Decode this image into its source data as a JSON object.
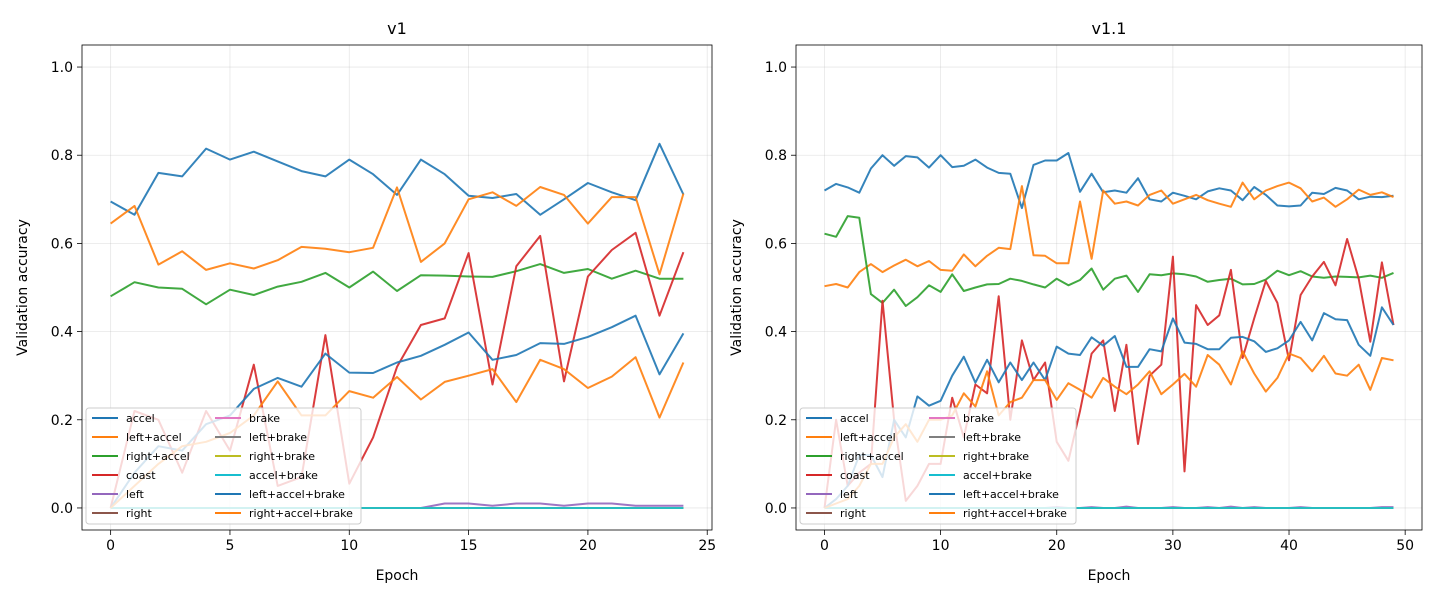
{
  "chart_data": [
    {
      "type": "line",
      "title": "v1",
      "xlabel": "Epoch",
      "ylabel": "Validation accuracy",
      "xlim": [
        -1.2,
        25.2
      ],
      "ylim": [
        -0.05,
        1.05
      ],
      "xticks": [
        0,
        5,
        10,
        15,
        20,
        25
      ],
      "yticks": [
        0.0,
        0.2,
        0.4,
        0.6,
        0.8,
        1.0
      ],
      "grid": true,
      "legend_placement": "lower-left",
      "legend_columns": 2,
      "x": [
        0,
        1,
        2,
        3,
        4,
        5,
        6,
        7,
        8,
        9,
        10,
        11,
        12,
        13,
        14,
        15,
        16,
        17,
        18,
        19,
        20,
        21,
        22,
        23,
        24
      ],
      "series": [
        {
          "name": "accel",
          "color": "#1f77b4",
          "values": [
            0.695,
            0.665,
            0.76,
            0.752,
            0.815,
            0.79,
            0.808,
            0.786,
            0.764,
            0.752,
            0.79,
            0.757,
            0.71,
            0.79,
            0.757,
            0.708,
            0.703,
            0.712,
            0.665,
            0.7,
            0.737,
            0.716,
            0.698,
            0.826,
            0.711
          ]
        },
        {
          "name": "left+accel",
          "color": "#ff7f0e",
          "values": [
            0.645,
            0.685,
            0.552,
            0.582,
            0.54,
            0.555,
            0.543,
            0.562,
            0.592,
            0.588,
            0.58,
            0.59,
            0.727,
            0.558,
            0.6,
            0.7,
            0.716,
            0.685,
            0.728,
            0.71,
            0.645,
            0.705,
            0.705,
            0.53,
            0.713
          ]
        },
        {
          "name": "right+accel",
          "color": "#2ca02c",
          "values": [
            0.48,
            0.512,
            0.5,
            0.497,
            0.462,
            0.495,
            0.483,
            0.502,
            0.513,
            0.533,
            0.5,
            0.536,
            0.492,
            0.528,
            0.527,
            0.525,
            0.524,
            0.537,
            0.553,
            0.533,
            0.542,
            0.52,
            0.538,
            0.52,
            0.52
          ]
        },
        {
          "name": "coast",
          "color": "#d62728",
          "values": [
            0.0,
            0.22,
            0.2,
            0.08,
            0.22,
            0.13,
            0.325,
            0.05,
            0.07,
            0.392,
            0.055,
            0.16,
            0.32,
            0.415,
            0.43,
            0.578,
            0.28,
            0.548,
            0.617,
            0.287,
            0.525,
            0.585,
            0.624,
            0.436,
            0.58
          ]
        },
        {
          "name": "left",
          "color": "#9467bd",
          "values": [
            0,
            0,
            0,
            0,
            0,
            0,
            0,
            0,
            0,
            0,
            0,
            0,
            0,
            0,
            0.01,
            0.01,
            0.005,
            0.01,
            0.01,
            0.005,
            0.01,
            0.01,
            0.005,
            0.005,
            0.005
          ]
        },
        {
          "name": "right",
          "color": "#8c564b",
          "values": [
            0,
            0,
            0,
            0,
            0,
            0,
            0,
            0,
            0,
            0,
            0,
            0,
            0,
            0,
            0,
            0,
            0,
            0,
            0,
            0,
            0,
            0,
            0,
            0,
            0
          ]
        },
        {
          "name": "brake",
          "color": "#e377c2",
          "values": [
            0,
            0,
            0,
            0,
            0,
            0,
            0,
            0,
            0,
            0,
            0,
            0,
            0,
            0,
            0,
            0,
            0,
            0,
            0,
            0,
            0,
            0,
            0,
            0,
            0
          ]
        },
        {
          "name": "left+brake",
          "color": "#7f7f7f",
          "values": [
            0,
            0,
            0,
            0,
            0,
            0,
            0,
            0,
            0,
            0,
            0,
            0,
            0,
            0,
            0,
            0,
            0,
            0,
            0,
            0,
            0,
            0,
            0,
            0,
            0
          ]
        },
        {
          "name": "right+brake",
          "color": "#bcbd22",
          "values": [
            0,
            0,
            0,
            0,
            0,
            0,
            0,
            0,
            0,
            0,
            0,
            0,
            0,
            0,
            0,
            0,
            0,
            0,
            0,
            0,
            0,
            0,
            0,
            0,
            0
          ]
        },
        {
          "name": "accel+brake",
          "color": "#17becf",
          "values": [
            0,
            0,
            0,
            0,
            0,
            0,
            0,
            0,
            0,
            0,
            0,
            0,
            0,
            0,
            0,
            0,
            0,
            0,
            0,
            0,
            0,
            0,
            0,
            0,
            0
          ]
        },
        {
          "name": "left+accel+brake",
          "color": "#1f77b4",
          "values": [
            0.0,
            0.08,
            0.14,
            0.13,
            0.19,
            0.21,
            0.27,
            0.295,
            0.275,
            0.35,
            0.307,
            0.306,
            0.33,
            0.345,
            0.37,
            0.398,
            0.336,
            0.347,
            0.374,
            0.372,
            0.388,
            0.41,
            0.436,
            0.303,
            0.396
          ]
        },
        {
          "name": "right+accel+brake",
          "color": "#ff7f0e",
          "values": [
            0.0,
            0.05,
            0.1,
            0.14,
            0.15,
            0.17,
            0.21,
            0.287,
            0.21,
            0.21,
            0.265,
            0.25,
            0.297,
            0.246,
            0.286,
            0.3,
            0.315,
            0.24,
            0.336,
            0.315,
            0.272,
            0.298,
            0.342,
            0.205,
            0.33
          ]
        }
      ]
    },
    {
      "type": "line",
      "title": "v1.1",
      "xlabel": "Epoch",
      "ylabel": "Validation accuracy",
      "xlim": [
        -2.45,
        51.45
      ],
      "ylim": [
        -0.05,
        1.05
      ],
      "xticks": [
        0,
        10,
        20,
        30,
        40,
        50
      ],
      "yticks": [
        0.0,
        0.2,
        0.4,
        0.6,
        0.8,
        1.0
      ],
      "grid": true,
      "legend_placement": "lower-left",
      "legend_columns": 2,
      "x": [
        0,
        1,
        2,
        3,
        4,
        5,
        6,
        7,
        8,
        9,
        10,
        11,
        12,
        13,
        14,
        15,
        16,
        17,
        18,
        19,
        20,
        21,
        22,
        23,
        24,
        25,
        26,
        27,
        28,
        29,
        30,
        31,
        32,
        33,
        34,
        35,
        36,
        37,
        38,
        39,
        40,
        41,
        42,
        43,
        44,
        45,
        46,
        47,
        48,
        49
      ],
      "series": [
        {
          "name": "accel",
          "color": "#1f77b4",
          "values": [
            0.72,
            0.735,
            0.727,
            0.715,
            0.77,
            0.8,
            0.776,
            0.798,
            0.795,
            0.772,
            0.8,
            0.773,
            0.776,
            0.79,
            0.772,
            0.76,
            0.758,
            0.68,
            0.778,
            0.788,
            0.788,
            0.805,
            0.717,
            0.758,
            0.716,
            0.72,
            0.715,
            0.748,
            0.7,
            0.695,
            0.715,
            0.708,
            0.7,
            0.718,
            0.725,
            0.72,
            0.698,
            0.728,
            0.71,
            0.686,
            0.684,
            0.686,
            0.715,
            0.712,
            0.726,
            0.72,
            0.7,
            0.706,
            0.705,
            0.708
          ]
        },
        {
          "name": "left+accel",
          "color": "#ff7f0e",
          "values": [
            0.503,
            0.508,
            0.5,
            0.535,
            0.553,
            0.535,
            0.55,
            0.563,
            0.548,
            0.56,
            0.54,
            0.538,
            0.575,
            0.548,
            0.572,
            0.59,
            0.587,
            0.73,
            0.573,
            0.572,
            0.555,
            0.555,
            0.695,
            0.565,
            0.72,
            0.69,
            0.695,
            0.686,
            0.71,
            0.72,
            0.69,
            0.7,
            0.71,
            0.698,
            0.69,
            0.683,
            0.738,
            0.7,
            0.72,
            0.73,
            0.738,
            0.725,
            0.695,
            0.704,
            0.683,
            0.7,
            0.722,
            0.71,
            0.716,
            0.705
          ]
        },
        {
          "name": "right+accel",
          "color": "#2ca02c",
          "values": [
            0.622,
            0.615,
            0.662,
            0.658,
            0.485,
            0.465,
            0.495,
            0.458,
            0.478,
            0.505,
            0.49,
            0.53,
            0.492,
            0.5,
            0.507,
            0.508,
            0.52,
            0.515,
            0.507,
            0.5,
            0.52,
            0.505,
            0.517,
            0.543,
            0.495,
            0.52,
            0.527,
            0.49,
            0.53,
            0.528,
            0.532,
            0.53,
            0.525,
            0.513,
            0.517,
            0.52,
            0.507,
            0.508,
            0.518,
            0.538,
            0.528,
            0.537,
            0.525,
            0.522,
            0.525,
            0.524,
            0.523,
            0.527,
            0.522,
            0.533
          ]
        },
        {
          "name": "coast",
          "color": "#d62728",
          "values": [
            0.0,
            0.2,
            0.05,
            0.08,
            0.1,
            0.47,
            0.2,
            0.016,
            0.05,
            0.1,
            0.1,
            0.25,
            0.16,
            0.28,
            0.26,
            0.48,
            0.2,
            0.38,
            0.29,
            0.33,
            0.15,
            0.107,
            0.22,
            0.35,
            0.38,
            0.22,
            0.37,
            0.145,
            0.3,
            0.325,
            0.57,
            0.083,
            0.46,
            0.415,
            0.437,
            0.54,
            0.34,
            0.43,
            0.515,
            0.465,
            0.335,
            0.483,
            0.525,
            0.558,
            0.505,
            0.61,
            0.52,
            0.377,
            0.557,
            0.415
          ]
        },
        {
          "name": "left",
          "color": "#9467bd",
          "values": [
            0,
            0,
            0,
            0,
            0,
            0,
            0,
            0,
            0,
            0,
            0,
            0,
            0,
            0,
            0,
            0,
            0,
            0,
            0,
            0,
            0.002,
            0,
            0,
            0.002,
            0,
            0,
            0.003,
            0,
            0,
            0,
            0.002,
            0,
            0,
            0.002,
            0,
            0.003,
            0,
            0.002,
            0,
            0,
            0,
            0.002,
            0,
            0,
            0,
            0,
            0,
            0,
            0.002,
            0.002
          ]
        },
        {
          "name": "right",
          "color": "#8c564b",
          "values": [
            0,
            0,
            0,
            0,
            0,
            0,
            0,
            0,
            0,
            0,
            0,
            0,
            0,
            0,
            0,
            0,
            0,
            0,
            0,
            0,
            0,
            0,
            0,
            0,
            0,
            0,
            0,
            0,
            0,
            0,
            0,
            0,
            0,
            0,
            0,
            0,
            0,
            0,
            0,
            0,
            0,
            0,
            0,
            0,
            0,
            0,
            0,
            0,
            0,
            0
          ]
        },
        {
          "name": "brake",
          "color": "#e377c2",
          "values": [
            0,
            0,
            0,
            0,
            0,
            0,
            0,
            0,
            0,
            0,
            0,
            0,
            0,
            0,
            0,
            0,
            0,
            0,
            0,
            0,
            0,
            0,
            0,
            0,
            0,
            0,
            0,
            0,
            0,
            0,
            0,
            0,
            0,
            0,
            0,
            0,
            0,
            0,
            0,
            0,
            0,
            0,
            0,
            0,
            0,
            0,
            0,
            0,
            0,
            0
          ]
        },
        {
          "name": "left+brake",
          "color": "#7f7f7f",
          "values": [
            0,
            0,
            0,
            0,
            0,
            0,
            0,
            0,
            0,
            0,
            0,
            0,
            0,
            0,
            0,
            0,
            0,
            0,
            0,
            0,
            0,
            0,
            0,
            0,
            0,
            0,
            0,
            0,
            0,
            0,
            0,
            0,
            0,
            0,
            0,
            0,
            0,
            0,
            0,
            0,
            0,
            0,
            0,
            0,
            0,
            0,
            0,
            0,
            0,
            0
          ]
        },
        {
          "name": "right+brake",
          "color": "#bcbd22",
          "values": [
            0,
            0,
            0,
            0,
            0,
            0,
            0,
            0,
            0,
            0,
            0,
            0,
            0,
            0,
            0,
            0,
            0,
            0,
            0,
            0,
            0,
            0,
            0,
            0,
            0,
            0,
            0,
            0,
            0,
            0,
            0,
            0,
            0,
            0,
            0,
            0,
            0,
            0,
            0,
            0,
            0,
            0,
            0,
            0,
            0,
            0,
            0,
            0,
            0,
            0
          ]
        },
        {
          "name": "accel+brake",
          "color": "#17becf",
          "values": [
            0,
            0,
            0,
            0,
            0,
            0,
            0,
            0,
            0,
            0,
            0,
            0,
            0,
            0,
            0,
            0,
            0,
            0,
            0,
            0,
            0,
            0,
            0,
            0,
            0,
            0,
            0,
            0,
            0,
            0,
            0,
            0,
            0,
            0,
            0,
            0,
            0,
            0,
            0,
            0,
            0,
            0,
            0,
            0,
            0,
            0,
            0,
            0,
            0,
            0
          ]
        },
        {
          "name": "left+accel+brake",
          "color": "#1f77b4",
          "values": [
            0.0,
            0.02,
            0.05,
            0.12,
            0.12,
            0.07,
            0.2,
            0.16,
            0.253,
            0.232,
            0.243,
            0.3,
            0.343,
            0.284,
            0.336,
            0.285,
            0.33,
            0.29,
            0.33,
            0.29,
            0.366,
            0.35,
            0.347,
            0.387,
            0.368,
            0.39,
            0.32,
            0.32,
            0.36,
            0.355,
            0.43,
            0.375,
            0.372,
            0.36,
            0.36,
            0.386,
            0.388,
            0.378,
            0.354,
            0.362,
            0.38,
            0.422,
            0.38,
            0.442,
            0.428,
            0.426,
            0.37,
            0.345,
            0.455,
            0.415
          ]
        },
        {
          "name": "right+accel+brake",
          "color": "#ff7f0e",
          "values": [
            0.0,
            0.01,
            0.02,
            0.05,
            0.1,
            0.1,
            0.16,
            0.19,
            0.15,
            0.2,
            0.2,
            0.21,
            0.26,
            0.23,
            0.31,
            0.21,
            0.24,
            0.25,
            0.29,
            0.29,
            0.245,
            0.283,
            0.268,
            0.25,
            0.295,
            0.275,
            0.258,
            0.28,
            0.31,
            0.258,
            0.28,
            0.304,
            0.275,
            0.347,
            0.325,
            0.28,
            0.355,
            0.305,
            0.264,
            0.295,
            0.35,
            0.34,
            0.31,
            0.345,
            0.305,
            0.3,
            0.325,
            0.268,
            0.34,
            0.335
          ]
        }
      ]
    }
  ]
}
